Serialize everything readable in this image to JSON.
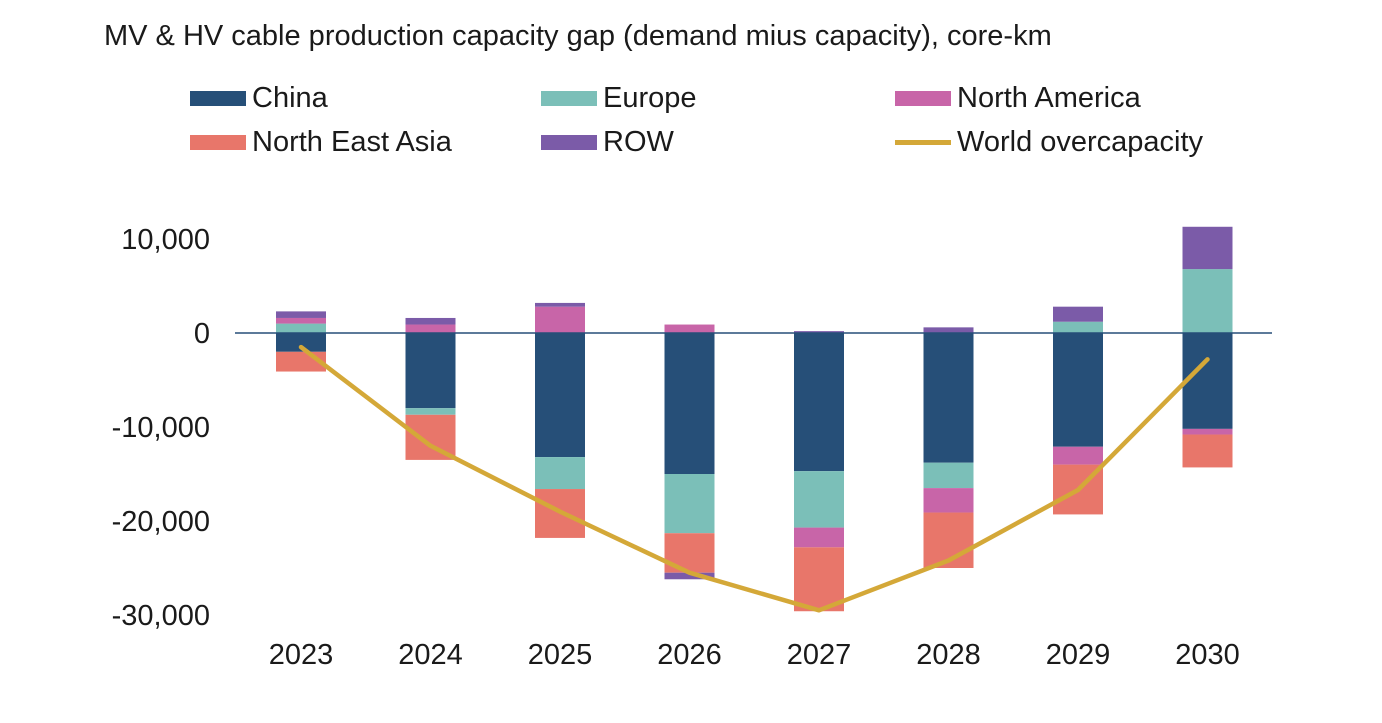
{
  "chart_data": {
    "type": "bar",
    "stacked": true,
    "title": "MV & HV cable production capacity gap (demand mius capacity), core-km",
    "categories": [
      "2023",
      "2024",
      "2025",
      "2026",
      "2027",
      "2028",
      "2029",
      "2030"
    ],
    "ylim": [
      -30000,
      10000
    ],
    "yticks": [
      10000,
      0,
      -10000,
      -20000,
      -30000
    ],
    "ytick_labels": [
      "10,000",
      "0",
      "-10,000",
      "-20,000",
      "-30,000"
    ],
    "series": [
      {
        "name": "China",
        "color": "#264F78",
        "values": [
          -2000,
          -8000,
          -13200,
          -15000,
          -14700,
          -13800,
          -12100,
          -10200
        ]
      },
      {
        "name": "Europe",
        "color": "#7BBFB8",
        "values": [
          1000,
          -700,
          -3400,
          -6300,
          -6000,
          -2700,
          1200,
          6800
        ]
      },
      {
        "name": "North America",
        "color": "#C865A8",
        "values": [
          600,
          900,
          2800,
          900,
          -2100,
          -2600,
          -1900,
          -600
        ]
      },
      {
        "name": "North East Asia",
        "color": "#E8766A",
        "values": [
          -2100,
          -4800,
          -5200,
          -4200,
          -6800,
          -5900,
          -5300,
          -3500
        ]
      },
      {
        "name": "ROW",
        "color": "#7B5BA8",
        "values": [
          700,
          700,
          400,
          -700,
          200,
          600,
          1600,
          4500
        ]
      }
    ],
    "line": {
      "name": "World overcapacity",
      "color": "#D4A838",
      "values": [
        -1500,
        -12000,
        -19000,
        -25500,
        -29500,
        -24200,
        -16700,
        -2800
      ]
    },
    "legend": {
      "row1": [
        "China",
        "Europe",
        "North America"
      ],
      "row2": [
        "North East Asia",
        "ROW",
        "World overcapacity"
      ],
      "position": "top"
    }
  }
}
